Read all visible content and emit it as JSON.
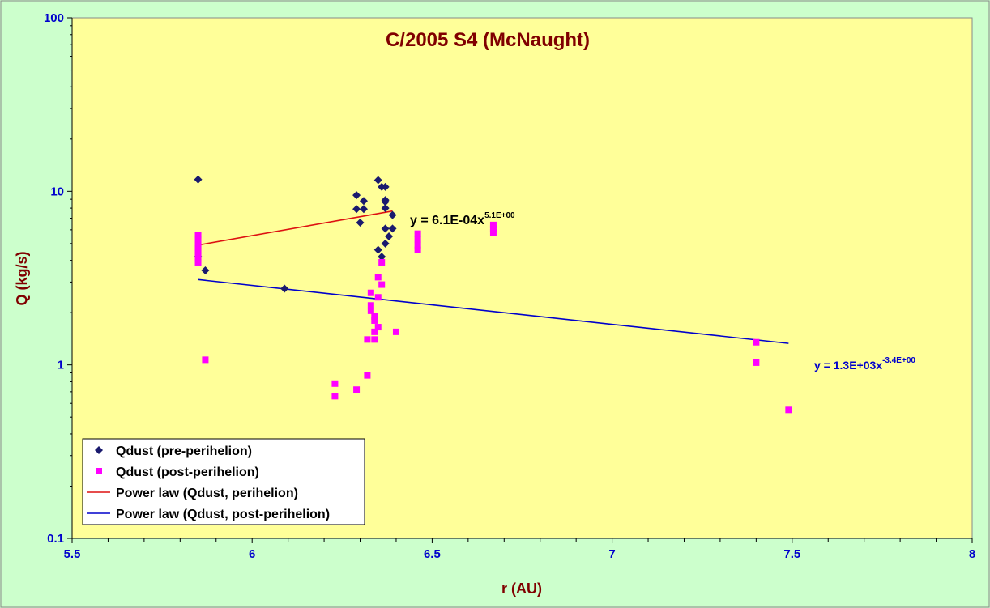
{
  "chart_data": {
    "type": "scatter",
    "title": "C/2005 S4 (McNaught)",
    "xlabel": "r (AU)",
    "ylabel": "Q (kg/s)",
    "xlim": [
      5.5,
      8
    ],
    "ylim": [
      0.1,
      100
    ],
    "yscale": "log",
    "xticks": [
      "5.5",
      "6",
      "6.5",
      "7",
      "7.5",
      "8"
    ],
    "yticks": [
      "0.1",
      "1",
      "10",
      "100"
    ],
    "grid": false,
    "legend_position": "bottom-left",
    "colors": {
      "plot_background": "#ffff99",
      "figure_background": "#ccffcc",
      "pre": "#1a1a6e",
      "post": "#ff00ff",
      "fit_pre": "#dd1111",
      "fit_post": "#0000cc",
      "tick": "#0000cc",
      "title": "#800000"
    },
    "series": [
      {
        "name": "Qdust (pre-perihelion)",
        "marker": "diamond",
        "points": [
          [
            5.85,
            11.7
          ],
          [
            5.85,
            4.2
          ],
          [
            5.87,
            3.5
          ],
          [
            6.09,
            2.75
          ],
          [
            6.29,
            9.5
          ],
          [
            6.29,
            7.9
          ],
          [
            6.3,
            6.6
          ],
          [
            6.31,
            7.9
          ],
          [
            6.31,
            8.8
          ],
          [
            6.35,
            11.6
          ],
          [
            6.35,
            4.6
          ],
          [
            6.36,
            10.6
          ],
          [
            6.37,
            10.6
          ],
          [
            6.37,
            8.9
          ],
          [
            6.37,
            8.7
          ],
          [
            6.37,
            8.0
          ],
          [
            6.37,
            6.1
          ],
          [
            6.37,
            5.0
          ],
          [
            6.36,
            4.2
          ],
          [
            6.38,
            5.5
          ],
          [
            6.39,
            6.1
          ],
          [
            6.39,
            7.3
          ]
        ]
      },
      {
        "name": "Qdust (post-perihelion)",
        "marker": "square",
        "points": [
          [
            5.85,
            5.6
          ],
          [
            5.85,
            5.3
          ],
          [
            5.85,
            4.9
          ],
          [
            5.85,
            4.7
          ],
          [
            5.85,
            4.5
          ],
          [
            5.85,
            4.3
          ],
          [
            5.85,
            4.1
          ],
          [
            5.85,
            3.9
          ],
          [
            5.87,
            1.07
          ],
          [
            6.23,
            0.78
          ],
          [
            6.23,
            0.66
          ],
          [
            6.29,
            0.72
          ],
          [
            6.32,
            0.87
          ],
          [
            6.32,
            1.4
          ],
          [
            6.33,
            2.6
          ],
          [
            6.33,
            2.2
          ],
          [
            6.33,
            2.05
          ],
          [
            6.34,
            1.9
          ],
          [
            6.34,
            1.8
          ],
          [
            6.34,
            1.55
          ],
          [
            6.34,
            1.4
          ],
          [
            6.35,
            3.2
          ],
          [
            6.35,
            2.45
          ],
          [
            6.35,
            1.65
          ],
          [
            6.36,
            3.9
          ],
          [
            6.36,
            2.9
          ],
          [
            6.4,
            1.55
          ],
          [
            6.46,
            5.7
          ],
          [
            6.46,
            5.3
          ],
          [
            6.46,
            4.9
          ],
          [
            6.46,
            4.6
          ],
          [
            6.67,
            6.4
          ],
          [
            6.67,
            6.1
          ],
          [
            6.67,
            5.8
          ],
          [
            7.4,
            1.35
          ],
          [
            7.4,
            1.03
          ],
          [
            7.49,
            0.55
          ]
        ]
      },
      {
        "name": "Power law (Qdust, perihelion)",
        "type": "line",
        "points": [
          [
            5.85,
            4.9
          ],
          [
            6.39,
            7.7
          ]
        ]
      },
      {
        "name": "Power law (Qdust, post-perihelion)",
        "type": "line",
        "points": [
          [
            5.85,
            3.1
          ],
          [
            7.49,
            1.33
          ]
        ]
      }
    ],
    "annotations": [
      {
        "text": "y = 6.1E-04x",
        "sup": "5.1E+00",
        "series": "pre"
      },
      {
        "text": "y = 1.3E+03x",
        "sup": "-3.4E+00",
        "series": "post"
      }
    ]
  }
}
